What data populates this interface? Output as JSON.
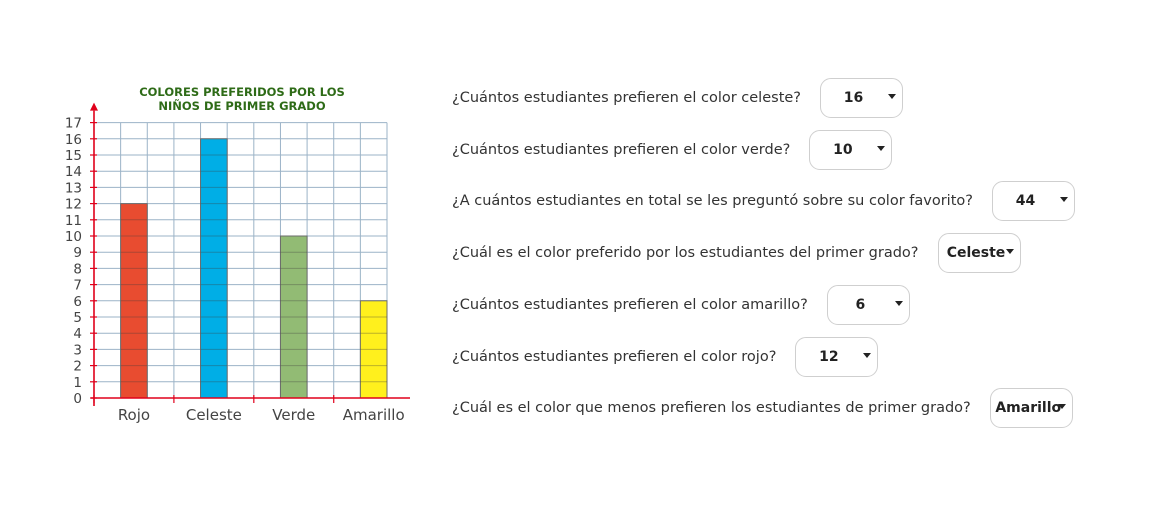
{
  "chart_data": {
    "type": "bar",
    "title_lines": [
      "COLORES PREFERIDOS POR LOS",
      "NIÑOS DE PRIMER GRADO"
    ],
    "categories": [
      "Rojo",
      "Celeste",
      "Verde",
      "Amarillo"
    ],
    "values": [
      12,
      16,
      10,
      6
    ],
    "colors": [
      "#e84c30",
      "#00aee6",
      "#92bb74",
      "#fff01d"
    ],
    "ylim": [
      0,
      17
    ],
    "yticks": [
      "0",
      "1",
      "2",
      "3",
      "4",
      "5",
      "6",
      "7",
      "8",
      "9",
      "10",
      "11",
      "12",
      "13",
      "14",
      "15",
      "16",
      "17"
    ],
    "grid": true,
    "title_color": "#2e6b17",
    "axis_color": "#e0001b",
    "grid_color": "#9bb3c7"
  },
  "questions": [
    {
      "text": "¿Cuántos estudiantes prefieren el color celeste?",
      "answer": "16"
    },
    {
      "text": "¿Cuántos estudiantes prefieren el color verde?",
      "answer": "10"
    },
    {
      "text": "¿A cuántos estudiantes en total se les preguntó sobre su color favorito?",
      "answer": "44"
    },
    {
      "text": "¿Cuál es el color preferido por los estudiantes del primer grado?",
      "answer": "Celeste"
    },
    {
      "text": "¿Cuántos estudiantes prefieren el color amarillo?",
      "answer": "6"
    },
    {
      "text": "¿Cuántos estudiantes prefieren el color rojo?",
      "answer": "12"
    },
    {
      "text": "¿Cuál es el color que menos prefieren los estudiantes de primer grado?",
      "answer": "Amarillo"
    }
  ]
}
